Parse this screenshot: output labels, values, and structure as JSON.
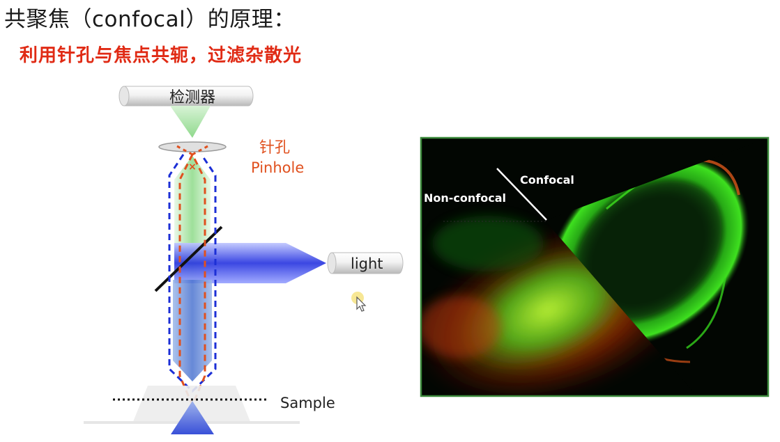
{
  "header": {
    "title": "共聚焦（confocal）的原理：",
    "subtitle": "利用针孔与焦点共轭，过滤杂散光"
  },
  "diagram": {
    "detector_label": "检测器",
    "pinhole_label_cn": "针孔",
    "pinhole_label_en": "Pinhole",
    "light_label": "light",
    "sample_label": "Sample",
    "colors": {
      "emission_beam": "#8fd98c",
      "excitation_beam": "#2a37e0",
      "confocal_path": "#e0501e",
      "nonconfocal_path": "#1c2fd6",
      "label_accent": "#e0501e"
    }
  },
  "micrograph": {
    "confocal_label": "Confocal",
    "nonconfocal_label": "Non-confocal",
    "border_color": "#3c8a3c"
  }
}
